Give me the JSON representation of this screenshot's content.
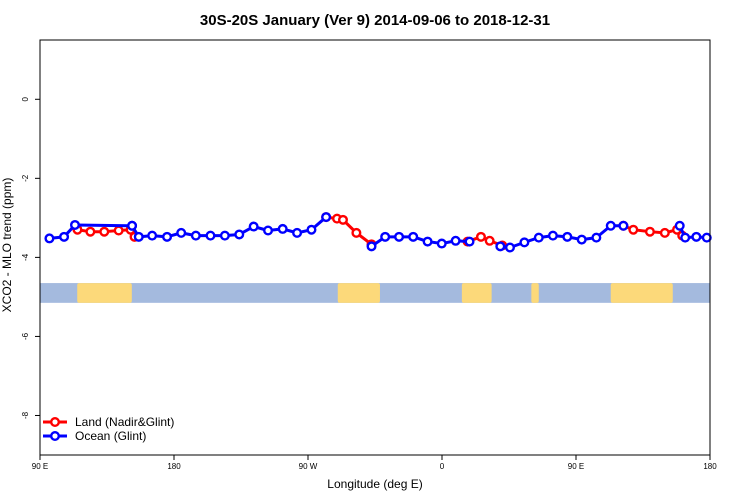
{
  "chart_data": {
    "type": "line",
    "title": "30S-20S January (Ver 9)   2014-09-06 to 2018-12-31",
    "xlabel": "Longitude (deg E)",
    "ylabel": "XCO2 - MLO trend (ppm)",
    "xlim": [
      -90,
      180
    ],
    "ylim": [
      -9,
      1.5
    ],
    "x_ticks": [
      -90,
      -36,
      18,
      72,
      126,
      180
    ],
    "x_tick_labels": [
      "90 E",
      "180",
      "90 W",
      "0",
      "90 E",
      "180"
    ],
    "y_ticks": [
      0,
      -2,
      -4,
      -6,
      -8
    ],
    "y_tick_labels": [
      "0",
      "-2",
      "-4",
      "-6",
      "-8"
    ],
    "land_mask_band": {
      "y_top": -4.65,
      "y_bottom": -5.15,
      "ocean_color": "#a4bade",
      "land_color": "#fcd97a"
    },
    "land_segments": [
      [
        -75,
        -53
      ],
      [
        30,
        47
      ],
      [
        80,
        92
      ],
      [
        108,
        111
      ],
      [
        140,
        165
      ]
    ],
    "series": [
      {
        "name": "Land (Nadir&Glint)",
        "color": "#ff0000",
        "lines": [
          {
            "x": [
              -74.9,
              -69.7,
              -64.1,
              -58.3,
              -53.5,
              -51.9
            ],
            "y": [
              -3.3,
              -3.35,
              -3.35,
              -3.32,
              -3.3,
              -3.48
            ]
          },
          {
            "x": [
              25.3,
              29.7,
              32.1,
              37.5,
              43.6
            ],
            "y": [
              -2.98,
              -3.02,
              -3.05,
              -3.38,
              -3.67
            ]
          },
          {
            "x": [
              82.3,
              87.7,
              91.2,
              96.3
            ],
            "y": [
              -3.6,
              -3.48,
              -3.58,
              -3.7
            ]
          },
          {
            "x": [
              145.1,
              149.1,
              155.8,
              161.8,
              166.7,
              168.8
            ],
            "y": [
              -3.2,
              -3.3,
              -3.35,
              -3.38,
              -3.3,
              -3.45
            ]
          }
        ]
      },
      {
        "name": "Ocean (Glint)",
        "color": "#0000ff",
        "lines": [
          {
            "x": [
              -86.2,
              -80.3,
              -75.9,
              -52.9
            ],
            "y": [
              -3.52,
              -3.48,
              -3.18,
              -3.2
            ]
          },
          {
            "x": [
              -52.9,
              -50.2,
              -44.8,
              -38.8,
              -33.1,
              -27.2,
              -21.3,
              -15.5,
              -9.7,
              -3.9,
              1.9,
              7.8,
              13.6,
              19.4,
              25.3
            ],
            "y": [
              -3.2,
              -3.48,
              -3.45,
              -3.48,
              -3.38,
              -3.45,
              -3.45,
              -3.45,
              -3.42,
              -3.22,
              -3.32,
              -3.28,
              -3.38,
              -3.3,
              -2.98
            ]
          },
          {
            "x": [
              43.6,
              49.1,
              54.7,
              60.4,
              66.2,
              71.9,
              77.5,
              83.1
            ],
            "y": [
              -3.72,
              -3.48,
              -3.48,
              -3.48,
              -3.6,
              -3.65,
              -3.58,
              -3.6
            ]
          },
          {
            "x": [
              95.5,
              99.4,
              105.2,
              111.0,
              116.7,
              122.5,
              128.3,
              134.2,
              140.0,
              145.1
            ],
            "y": [
              -3.72,
              -3.75,
              -3.62,
              -3.5,
              -3.45,
              -3.48,
              -3.55,
              -3.5,
              -3.2,
              -3.2
            ]
          },
          {
            "x": [
              167.8,
              170.0,
              174.5,
              178.7
            ],
            "y": [
              -3.2,
              -3.5,
              -3.48,
              -3.5
            ]
          }
        ]
      }
    ],
    "legend": {
      "position": "bottom-left",
      "entries": [
        {
          "label": "Land (Nadir&Glint)",
          "color": "#ff0000"
        },
        {
          "label": "Ocean (Glint)",
          "color": "#0000ff"
        }
      ]
    }
  }
}
